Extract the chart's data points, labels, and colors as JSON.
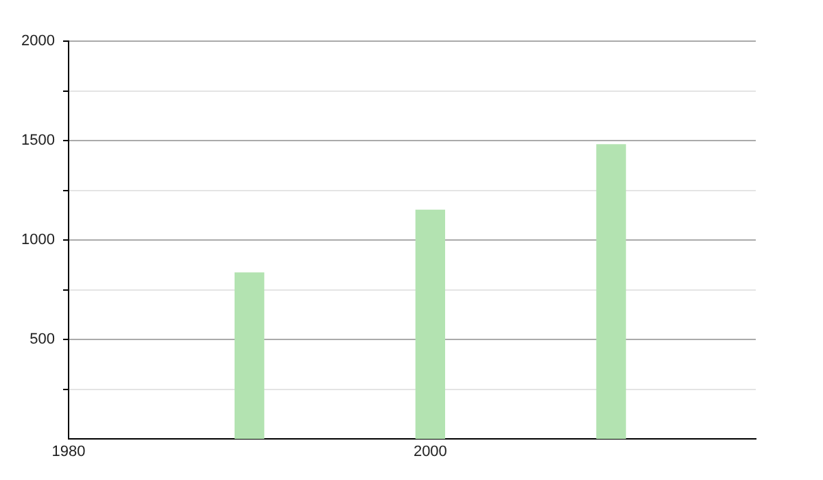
{
  "chart_data": {
    "type": "bar",
    "x": [
      1990,
      2000,
      2010
    ],
    "values": [
      835,
      1150,
      1480
    ],
    "color": "#b3e3b1",
    "xlim": [
      1980,
      2018
    ],
    "xticks": [
      1980,
      2000
    ],
    "ylim": [
      0,
      2000
    ],
    "yticks": [
      {
        "value": 250,
        "label": null
      },
      500,
      {
        "value": 750,
        "label": null
      },
      1000,
      {
        "value": 1250,
        "label": null
      },
      1500,
      {
        "value": 1750,
        "label": null
      },
      2000
    ],
    "grid": "y",
    "legend": false
  }
}
